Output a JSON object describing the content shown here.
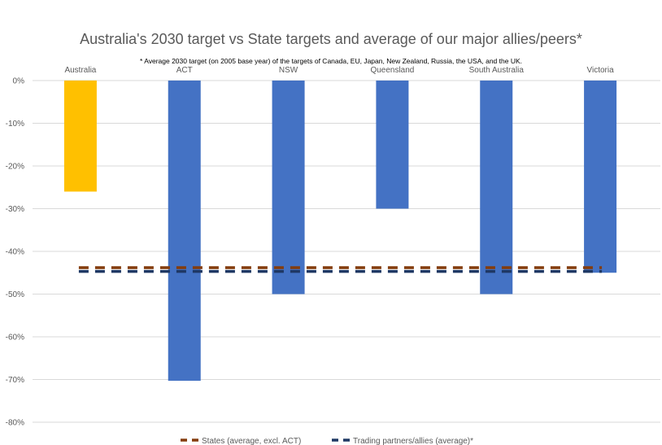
{
  "chart_data": {
    "type": "bar",
    "title": "Australia's 2030 target vs State targets and average of our major allies/peers*",
    "subtitle": "* Average 2030 target (on 2005 base year) of the targets of Canada, EU, Japan, New Zealand,  Russia, the USA, and the UK.",
    "categories": [
      "Australia",
      "ACT",
      "NSW",
      "Queensland",
      "South Australia",
      "Victoria"
    ],
    "values": [
      -26,
      -70.3,
      -50,
      -30,
      -50,
      -45
    ],
    "bar_colors": [
      "#FFC000",
      "#4472C4",
      "#4472C4",
      "#4472C4",
      "#4472C4",
      "#4472C4"
    ],
    "ylim": [
      -80,
      0
    ],
    "yticks": [
      0,
      -10,
      -20,
      -30,
      -40,
      -50,
      -60,
      -70,
      -80
    ],
    "ytick_labels": [
      "0%",
      "-10%",
      "-20%",
      "-30%",
      "-40%",
      "-50%",
      "-60%",
      "-70%",
      "-80%"
    ],
    "grid": true,
    "reference_lines": [
      {
        "name": "States (average, excl. ACT)",
        "value": -43.8,
        "color": "#843C0C",
        "style": "dashed"
      },
      {
        "name": "Trading partners/allies (average)*",
        "value": -44.7,
        "color": "#1F3864",
        "style": "dashed"
      }
    ],
    "legend_position": "bottom"
  }
}
